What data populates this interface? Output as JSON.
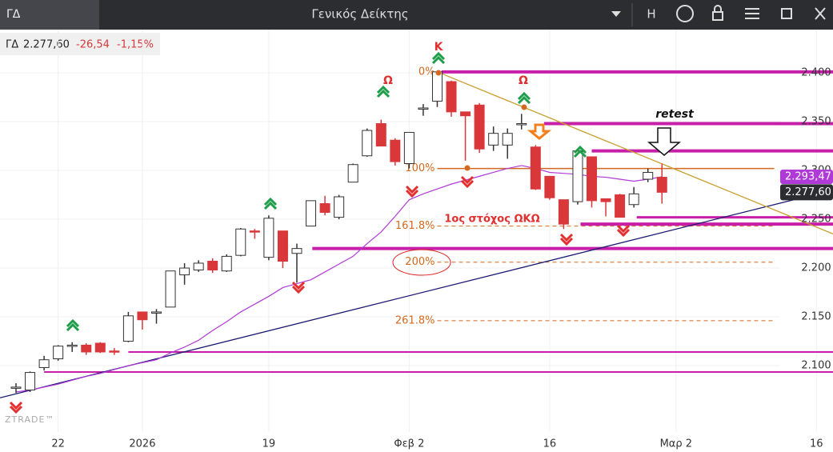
{
  "header": {
    "symbol": "ΓΔ",
    "title": "Γενικός Δείκτης",
    "mode": "H"
  },
  "quote": {
    "symbol": "ΓΔ",
    "price": "2.277,60",
    "change": "-26,54",
    "change_pct": "-1,15%"
  },
  "watermark": "ZTRADE™",
  "annotations": {
    "k": "Κ",
    "omega1": "Ω",
    "omega2": "Ω",
    "retest": "retest",
    "target": "1ος στόχος ΩΚΩ"
  },
  "chart_data": {
    "type": "candlestick",
    "xlim": [
      -1.14,
      58.18
    ],
    "xticks": [
      {
        "value": 3,
        "label": "22"
      },
      {
        "value": 9,
        "label": "2026"
      },
      {
        "value": 18,
        "label": "19"
      },
      {
        "value": 28,
        "label": "Φεβ 2"
      },
      {
        "value": 38,
        "label": "16"
      },
      {
        "value": 47,
        "label": "Μαρ 2"
      },
      {
        "value": 57,
        "label": "16"
      }
    ],
    "ylim": [
      2032,
      2444.3
    ],
    "yticks": [
      {
        "value": 2100,
        "label": "2.100"
      },
      {
        "value": 2150,
        "label": "2.150"
      },
      {
        "value": 2200,
        "label": "2.200"
      },
      {
        "value": 2250,
        "label": "2.250"
      },
      {
        "value": 2300,
        "label": "2.300"
      },
      {
        "value": 2350,
        "label": "2.350"
      },
      {
        "value": 2400,
        "label": "2.400"
      }
    ],
    "grid": true,
    "up_color": "#ffffff",
    "down_color": "#d9373a",
    "open": [
      2078,
      2075,
      2098,
      2107,
      2120,
      2121,
      2123,
      2115,
      2125,
      2155,
      2154,
      2160,
      2193,
      2198,
      2207,
      2197,
      2213,
      2238,
      2211,
      2238,
      2215,
      2243,
      2266,
      2252,
      2288,
      2315,
      2348,
      2331,
      2307,
      2363,
      2371,
      2391,
      2360,
      2367,
      2326,
      2326,
      2347,
      2324,
      2294,
      2270,
      2268,
      2314,
      2271,
      2275,
      2265,
      2291,
      2293
    ],
    "high": [
      2082,
      2094,
      2110,
      2121,
      2124,
      2123,
      2124,
      2118,
      2155,
      2155,
      2158,
      2197,
      2205,
      2208,
      2210,
      2214,
      2241,
      2240,
      2254,
      2238,
      2225,
      2269,
      2274,
      2275,
      2307,
      2343,
      2352,
      2333,
      2339,
      2368,
      2402,
      2392,
      2360,
      2369,
      2345,
      2343,
      2358,
      2326,
      2294,
      2270,
      2320,
      2314,
      2271,
      2276,
      2283,
      2302,
      2307
    ],
    "low": [
      2072,
      2073,
      2095,
      2105,
      2114,
      2111,
      2113,
      2111,
      2124,
      2137,
      2143,
      2160,
      2183,
      2196,
      2195,
      2196,
      2212,
      2230,
      2208,
      2200,
      2185,
      2243,
      2254,
      2250,
      2288,
      2314,
      2325,
      2305,
      2302,
      2356,
      2365,
      2355,
      2310,
      2318,
      2320,
      2312,
      2342,
      2280,
      2270,
      2240,
      2265,
      2262,
      2253,
      2252,
      2262,
      2288,
      2266
    ],
    "close": [
      2078,
      2093,
      2106,
      2120,
      2121,
      2114,
      2114,
      2114,
      2151,
      2147,
      2155,
      2197,
      2200,
      2205,
      2198,
      2212,
      2240,
      2237,
      2251,
      2207,
      2220,
      2269,
      2257,
      2273,
      2306,
      2341,
      2325,
      2309,
      2339,
      2364,
      2401,
      2360,
      2356,
      2322,
      2338,
      2338,
      2348,
      2281,
      2272,
      2245,
      2320,
      2269,
      2268,
      2252,
      2276,
      2298,
      2277.6
    ],
    "ma": {
      "color": "#b03ad8",
      "values": [
        2073,
        2075,
        2078,
        2081,
        2085,
        2089,
        2092,
        2096,
        2100,
        2103,
        2106,
        2113,
        2119,
        2126,
        2136,
        2145,
        2155,
        2163,
        2171,
        2180,
        2184,
        2188,
        2196,
        2204,
        2212,
        2225,
        2237,
        2253,
        2270,
        2276,
        2281,
        2286,
        2290,
        2294,
        2298,
        2302,
        2305,
        2302,
        2298,
        2297,
        2296,
        2294,
        2293,
        2291,
        2289,
        2291,
        2293.47
      ],
      "last_label": "2.293,47"
    },
    "last_price": {
      "value": 2277.6,
      "label": "2.277,60"
    },
    "hlines": {
      "color": "#c71fa8",
      "levels": [
        {
          "value": 2401,
          "x0": 30.3,
          "width": 4
        },
        {
          "value": 2348,
          "x0": 37.6,
          "width": 4
        },
        {
          "value": 2320,
          "x0": 41,
          "width": 4
        },
        {
          "value": 2252,
          "x0": 44.2,
          "width": 3
        },
        {
          "value": 2245,
          "x0": 40.2,
          "width": 4
        },
        {
          "value": 2220,
          "x0": 21.1,
          "width": 4
        },
        {
          "value": 2114,
          "x0": 8,
          "width": 2
        },
        {
          "value": 2093.5,
          "x0": 2,
          "width": 2
        }
      ]
    },
    "trendlines": [
      {
        "x": [
          -1.14,
          58.18
        ],
        "y": [
          2067,
          2280
        ],
        "color": "#1b1b72"
      },
      {
        "x": [
          30,
          58.18
        ],
        "y": [
          2401,
          2235
        ],
        "color": "#c9a030"
      }
    ],
    "fib": {
      "color": "#d2691e",
      "x0": 30,
      "x1": 54,
      "levels": [
        {
          "label": "0%",
          "value": 2401
        },
        {
          "label": "100%",
          "value": 2302
        },
        {
          "label": "161.8%",
          "value": 2243
        },
        {
          "label": "200%",
          "value": 2206
        },
        {
          "label": "261.8%",
          "value": 2146
        }
      ]
    }
  }
}
